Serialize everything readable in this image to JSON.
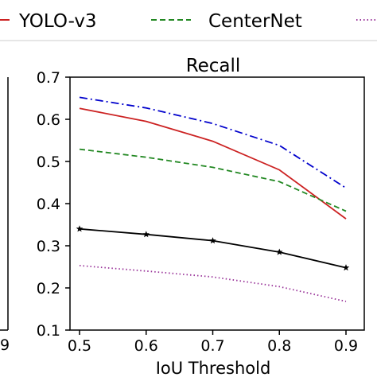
{
  "chart_data": {
    "type": "line",
    "title": "Recall",
    "xlabel": "IoU Threshold",
    "ylabel": "",
    "x": [
      0.5,
      0.6,
      0.7,
      0.8,
      0.9
    ],
    "xticks": [
      "0.5",
      "0.6",
      "0.7",
      "0.8",
      "0.9"
    ],
    "yticks": [
      "0.1",
      "0.2",
      "0.3",
      "0.4",
      "0.5",
      "0.6",
      "0.7"
    ],
    "ylim": [
      0.1,
      0.7
    ],
    "xlim": [
      0.5,
      0.9
    ],
    "grid": false,
    "legend_position": "top",
    "left_panel_tick": "9",
    "series": [
      {
        "name": "",
        "color": "#0000cc",
        "dash": "dashdot",
        "marker": "none",
        "values": [
          0.652,
          0.627,
          0.59,
          0.538,
          0.437
        ]
      },
      {
        "name": "YOLO-v3",
        "color": "#cc2222",
        "dash": "solid",
        "marker": "none",
        "values": [
          0.626,
          0.595,
          0.548,
          0.48,
          0.364
        ]
      },
      {
        "name": "CenterNet",
        "color": "#228822",
        "dash": "dashed",
        "marker": "none",
        "values": [
          0.529,
          0.51,
          0.486,
          0.452,
          0.382
        ]
      },
      {
        "name": "",
        "color": "#000000",
        "dash": "solid",
        "marker": "star",
        "values": [
          0.34,
          0.327,
          0.312,
          0.285,
          0.248
        ]
      },
      {
        "name": "",
        "color": "#993399",
        "dash": "dotted",
        "marker": "none",
        "values": [
          0.253,
          0.24,
          0.226,
          0.203,
          0.168
        ]
      }
    ]
  }
}
